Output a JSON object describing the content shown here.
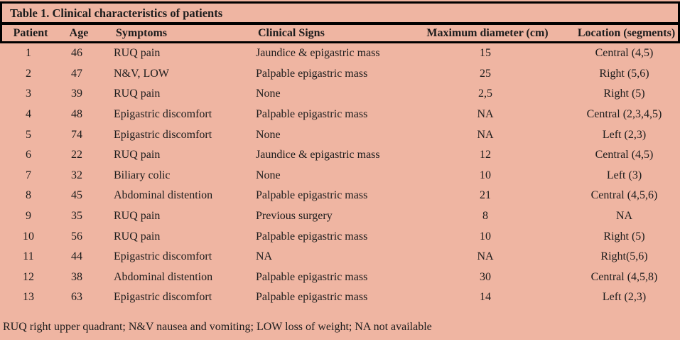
{
  "table": {
    "title": "Table 1. Clinical characteristics of patients",
    "columns": [
      "Patient",
      "Age",
      "Symptoms",
      "Clinical Signs",
      "Maximum diameter (cm)",
      "Location (segments)"
    ],
    "rows": [
      [
        "1",
        "46",
        "RUQ pain",
        "Jaundice & epigastric mass",
        "15",
        "Central (4,5)"
      ],
      [
        "2",
        "47",
        "N&V, LOW",
        "Palpable epigastric mass",
        "25",
        "Right (5,6)"
      ],
      [
        "3",
        "39",
        "RUQ pain",
        "None",
        "2,5",
        "Right (5)"
      ],
      [
        "4",
        "48",
        "Epigastric discomfort",
        "Palpable epigastric mass",
        "NA",
        "Central (2,3,4,5)"
      ],
      [
        "5",
        "74",
        "Epigastric discomfort",
        "None",
        "NA",
        "Left (2,3)"
      ],
      [
        "6",
        "22",
        "RUQ pain",
        "Jaundice & epigastric mass",
        "12",
        "Central (4,5)"
      ],
      [
        "7",
        "32",
        "Biliary colic",
        "None",
        "10",
        "Left (3)"
      ],
      [
        "8",
        "45",
        "Abdominal distention",
        "Palpable epigastric mass",
        "21",
        "Central (4,5,6)"
      ],
      [
        "9",
        "35",
        "RUQ pain",
        "Previous surgery",
        "8",
        "NA"
      ],
      [
        "10",
        "56",
        "RUQ pain",
        "Palpable epigastric mass",
        "10",
        "Right (5)"
      ],
      [
        "11",
        "44",
        "Epigastric discomfort",
        "NA",
        "NA",
        "Right(5,6)"
      ],
      [
        "12",
        "38",
        "Abdominal distention",
        "Palpable epigastric mass",
        "30",
        "Central (4,5,8)"
      ],
      [
        "13",
        "63",
        "Epigastric discomfort",
        "Palpable epigastric mass",
        "14",
        "Left (2,3)"
      ]
    ],
    "footnote": "RUQ right upper quadrant; N&V nausea and vomiting; LOW loss of weight; NA not available"
  },
  "colors": {
    "background": "#efb5a2",
    "rule": "#000000",
    "text": "#1c1c1c"
  }
}
